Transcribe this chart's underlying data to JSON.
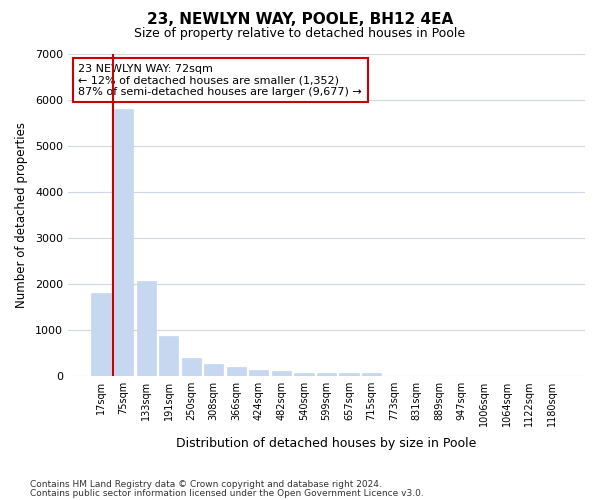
{
  "title": "23, NEWLYN WAY, POOLE, BH12 4EA",
  "subtitle": "Size of property relative to detached houses in Poole",
  "xlabel": "Distribution of detached houses by size in Poole",
  "ylabel": "Number of detached properties",
  "categories": [
    "17sqm",
    "75sqm",
    "133sqm",
    "191sqm",
    "250sqm",
    "308sqm",
    "366sqm",
    "424sqm",
    "482sqm",
    "540sqm",
    "599sqm",
    "657sqm",
    "715sqm",
    "773sqm",
    "831sqm",
    "889sqm",
    "947sqm",
    "1006sqm",
    "1064sqm",
    "1122sqm",
    "1180sqm"
  ],
  "values": [
    1800,
    5800,
    2050,
    850,
    380,
    250,
    180,
    115,
    90,
    65,
    60,
    50,
    50,
    0,
    0,
    0,
    0,
    0,
    0,
    0,
    0
  ],
  "bar_color": "#c5d8f0",
  "bar_edgecolor": "#c5d8f0",
  "red_line_x": 1,
  "red_line_color": "#cc0000",
  "annotation_text": "23 NEWLYN WAY: 72sqm\n← 12% of detached houses are smaller (1,352)\n87% of semi-detached houses are larger (9,677) →",
  "annotation_box_facecolor": "#ffffff",
  "annotation_box_edgecolor": "#cc0000",
  "figure_facecolor": "#ffffff",
  "plot_facecolor": "#ffffff",
  "grid_color": "#d0d8e8",
  "ylim": [
    0,
    7000
  ],
  "yticks": [
    0,
    1000,
    2000,
    3000,
    4000,
    5000,
    6000,
    7000
  ],
  "footnote1": "Contains HM Land Registry data © Crown copyright and database right 2024.",
  "footnote2": "Contains public sector information licensed under the Open Government Licence v3.0."
}
